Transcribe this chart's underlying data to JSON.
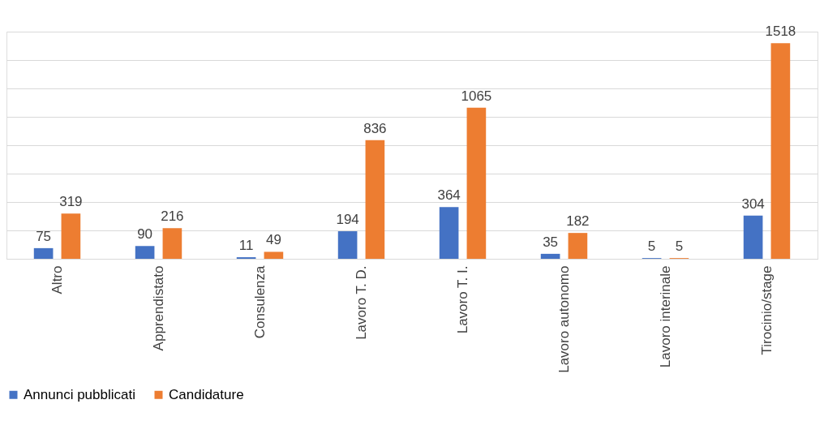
{
  "chart_data": {
    "type": "bar",
    "categories": [
      "Altro",
      "Apprendistato",
      "Consulenza",
      "Lavoro T. D.",
      "Lavoro T. I.",
      "Lavoro autonomo",
      "Lavoro interinale",
      "Tirocinio/stage"
    ],
    "series": [
      {
        "name": "Annunci pubblicati",
        "color": "#4472c4",
        "values": [
          75,
          90,
          11,
          194,
          364,
          35,
          5,
          304
        ]
      },
      {
        "name": "Candidature",
        "color": "#ed7d31",
        "values": [
          319,
          216,
          49,
          836,
          1065,
          182,
          5,
          1518
        ]
      }
    ],
    "ylim": [
      0,
      1600
    ],
    "yticks": [
      {
        "value": 0,
        "label": null
      },
      {
        "value": 200,
        "label": null
      },
      {
        "value": 400,
        "label": null
      },
      {
        "value": 600,
        "label": null
      },
      {
        "value": 800,
        "label": null
      },
      {
        "value": 1000,
        "label": null
      },
      {
        "value": 1200,
        "label": null
      },
      {
        "value": 1400,
        "label": null
      },
      {
        "value": 1600,
        "label": null
      }
    ],
    "tick_labels": "x",
    "grid": "y",
    "legend": "bottom",
    "data_labels": true
  }
}
